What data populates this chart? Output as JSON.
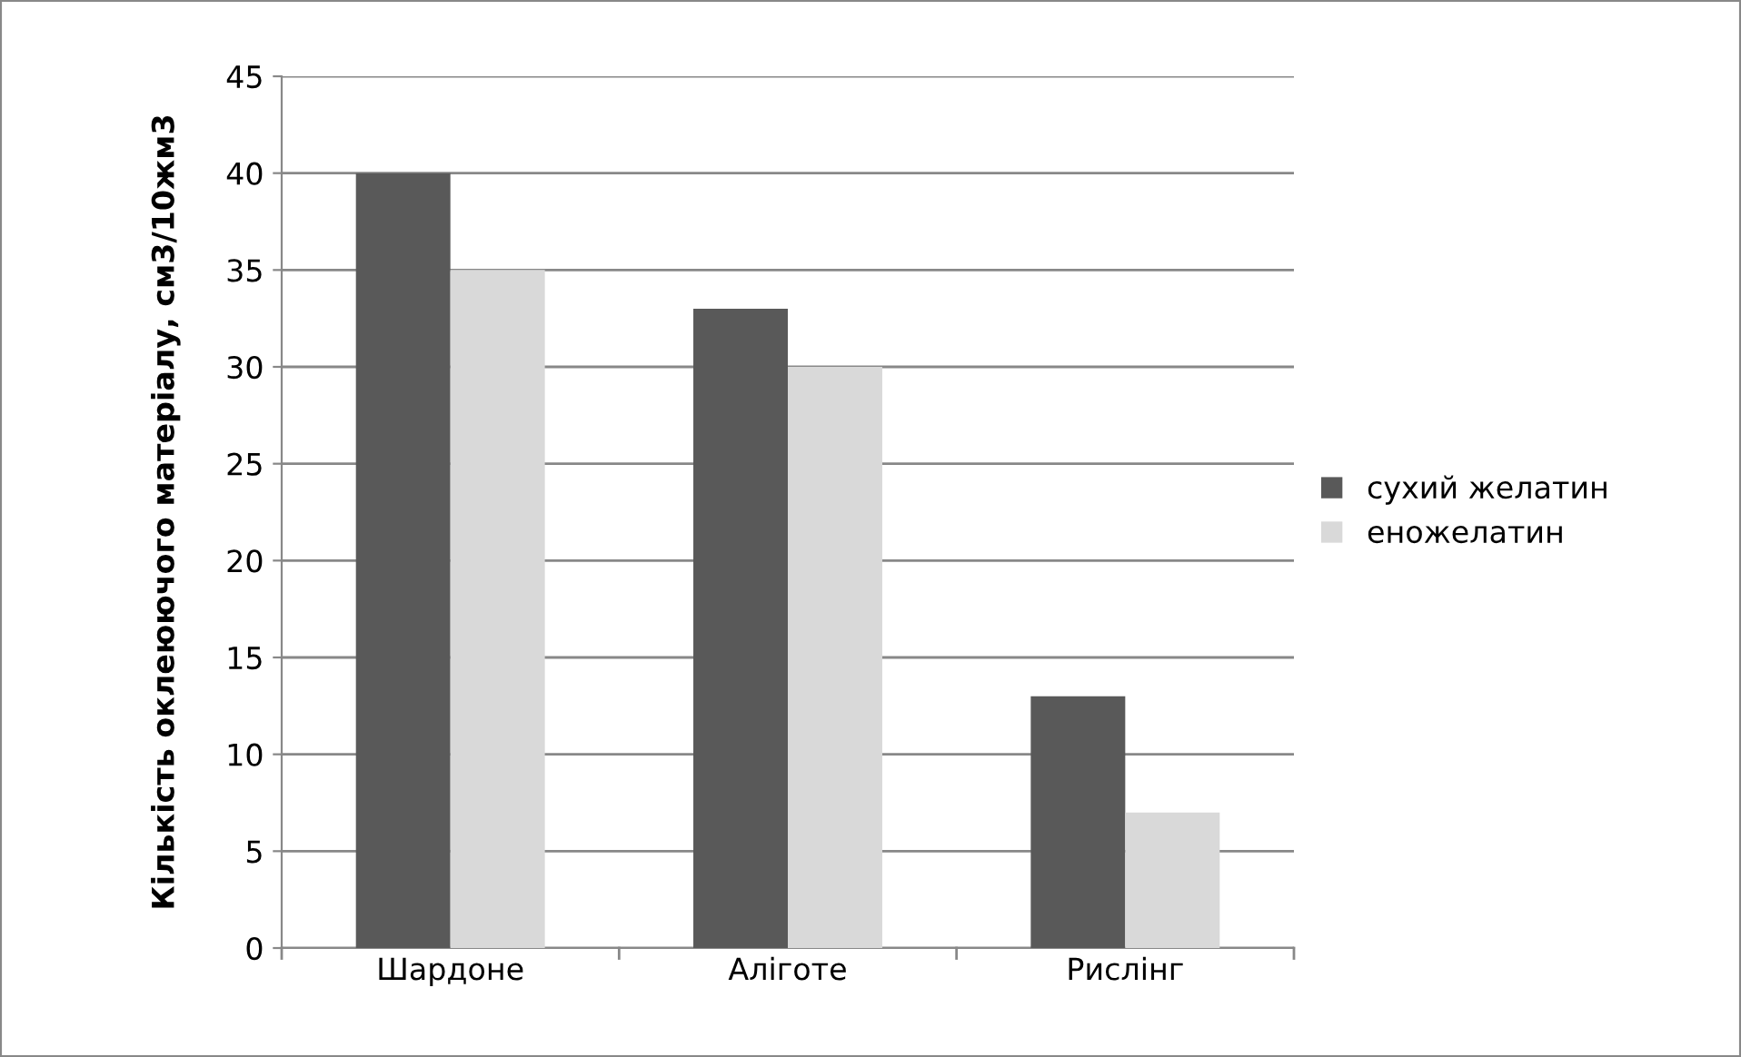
{
  "chart_data": {
    "type": "bar",
    "ylabel": "Кількість оклеюючого матеріалу, см3/10жм3",
    "categories": [
      "Шардоне",
      "Аліготе",
      "Рислінг"
    ],
    "series": [
      {
        "name": "сухий желатин",
        "color": "#595959",
        "values": [
          40,
          33,
          13
        ]
      },
      {
        "name": "еножелатин",
        "color": "#d9d9d9",
        "values": [
          35,
          30,
          7
        ]
      }
    ],
    "ylim": [
      0,
      45
    ],
    "yticks": [
      0,
      5,
      10,
      15,
      20,
      25,
      30,
      35,
      40,
      45
    ],
    "grid": "y",
    "legend": "right"
  }
}
